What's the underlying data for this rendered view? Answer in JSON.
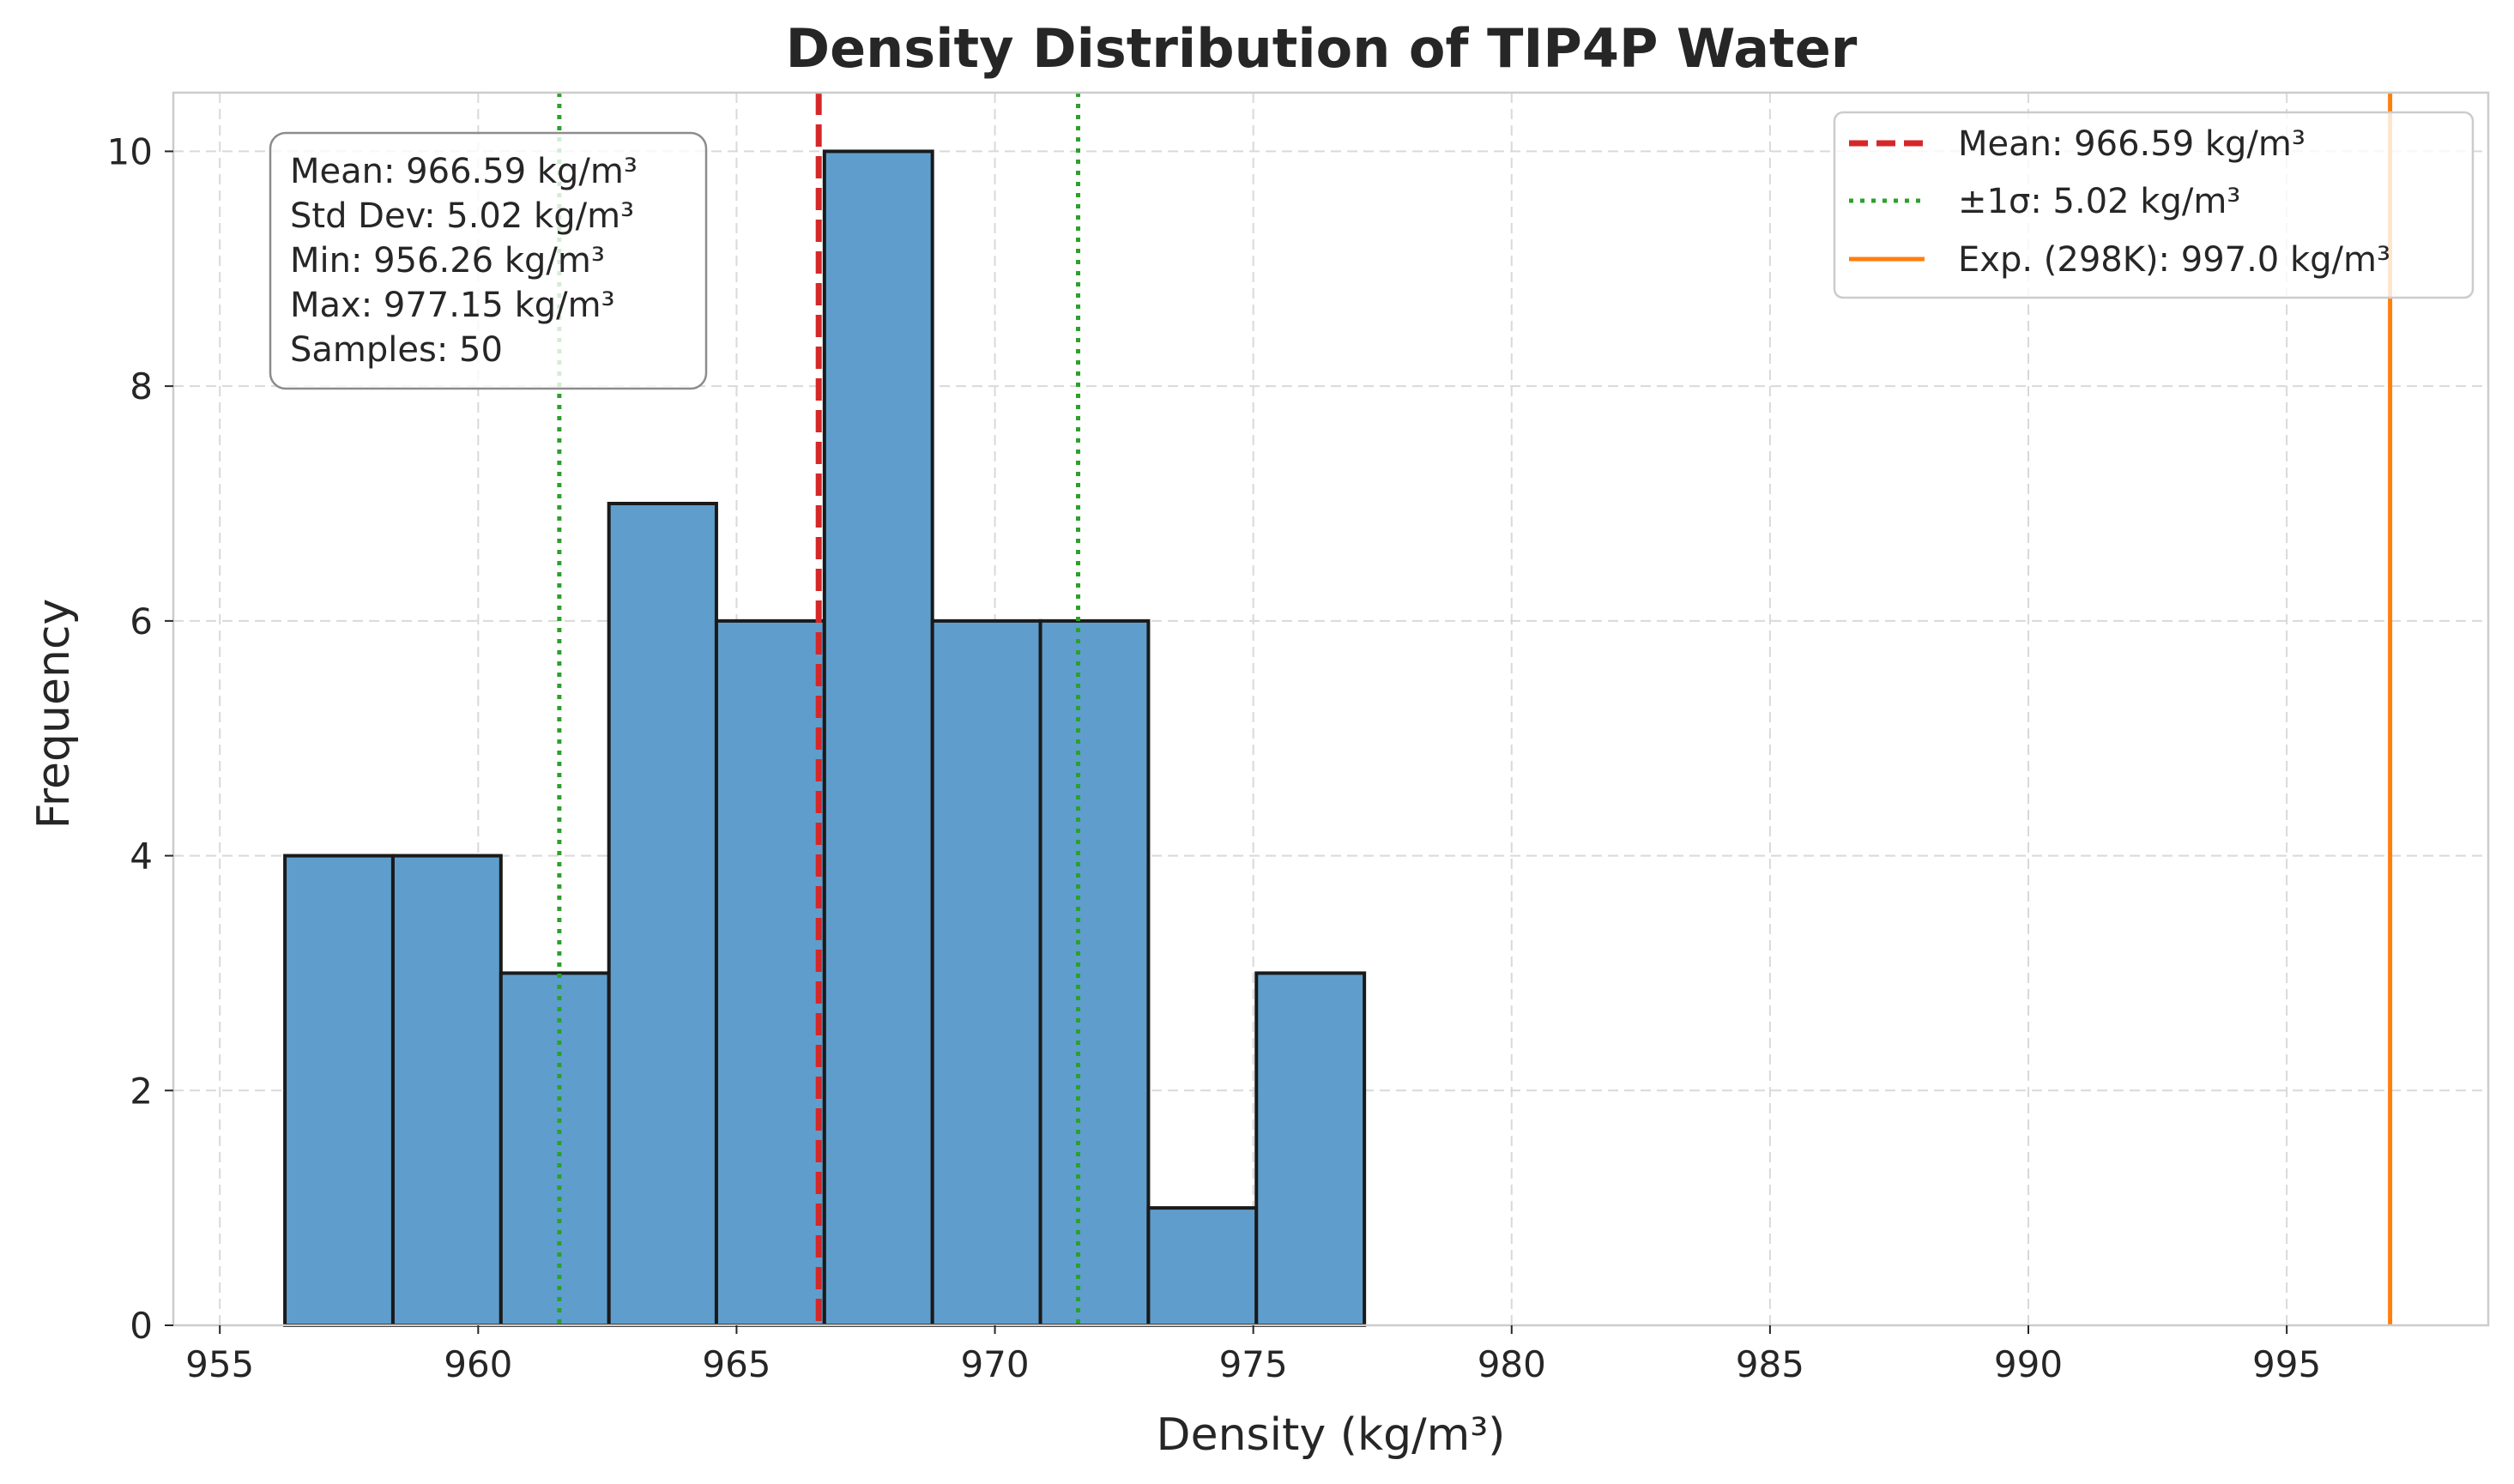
{
  "chart_data": {
    "type": "bar",
    "subtype": "histogram",
    "title": "Density Distribution of TIP4P Water",
    "xlabel": "Density (kg/m³)",
    "ylabel": "Frequency",
    "xlim": [
      954.1,
      998.9
    ],
    "ylim": [
      0,
      10.5
    ],
    "x_ticks": [
      955,
      960,
      965,
      970,
      975,
      980,
      985,
      990,
      995
    ],
    "y_ticks": [
      0,
      2,
      4,
      6,
      8,
      10
    ],
    "grid": true,
    "bin_edges": [
      956.26,
      958.35,
      960.44,
      962.53,
      964.61,
      966.7,
      968.79,
      970.88,
      972.97,
      975.06,
      977.15
    ],
    "values": [
      4,
      4,
      3,
      7,
      6,
      10,
      6,
      6,
      1,
      3
    ],
    "vlines": [
      {
        "name": "Mean: 966.59 kg/m³",
        "x": 966.59,
        "style": "dashed",
        "color": "#d62728"
      },
      {
        "name": "±1σ: 5.02 kg/m³",
        "x": 961.57,
        "style": "dotted",
        "color": "#2ca02c"
      },
      {
        "name": "",
        "x": 971.61,
        "style": "dotted",
        "color": "#2ca02c"
      },
      {
        "name": "Exp. (298K): 997.0 kg/m³",
        "x": 997.0,
        "style": "solid",
        "color": "#ff7f0e"
      }
    ],
    "legend": {
      "position": "top-right",
      "entries": [
        "Mean: 966.59 kg/m³",
        "±1σ: 5.02 kg/m³",
        "Exp. (298K): 997.0 kg/m³"
      ]
    },
    "stats_box": {
      "position": "top-left",
      "lines": [
        "Mean: 966.59 kg/m³",
        "Std Dev: 5.02 kg/m³",
        "Min: 956.26 kg/m³",
        "Max: 977.15 kg/m³",
        "Samples: 50"
      ]
    },
    "colors": {
      "bar_fill": "#5f9ecc",
      "bar_edge": "#1a1a1a",
      "grid": "#d9d9d9",
      "frame": "#cccccc"
    }
  }
}
